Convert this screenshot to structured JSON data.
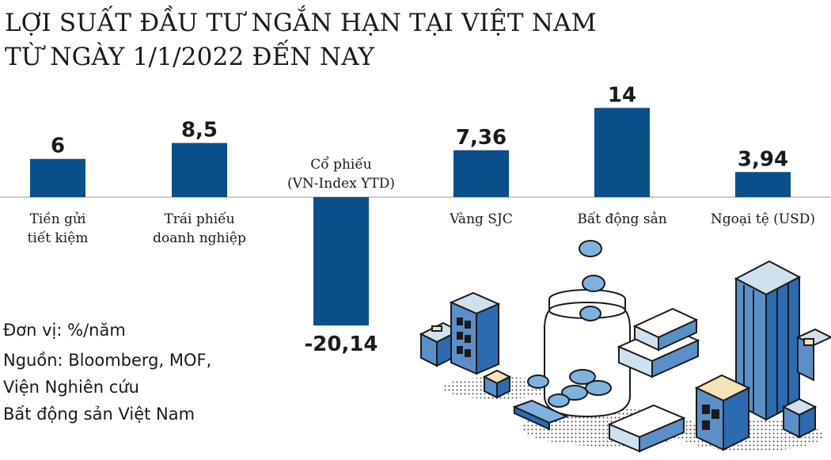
{
  "title": {
    "line1": "LỢI SUẤT ĐẦU TƯ NGẮN HẠN TẠI VIỆT NAM",
    "line2": "TỪ NGÀY 1/1/2022 ĐẾN NAY"
  },
  "notes": {
    "unit": "Đơn vị: %/năm",
    "source_line1": "Nguồn: Bloomberg, MOF,",
    "source_line2": "Viện Nghiên cứu",
    "source_line3": "Bất động sản Việt Nam"
  },
  "colors": {
    "bar": "#0b4f8a",
    "axis": "#9a9a9a",
    "text": "#1a1a1a"
  },
  "chart_data": {
    "type": "bar",
    "categories": [
      [
        "Tiền gửi",
        "tiết kiệm"
      ],
      [
        "Trái phiếu",
        "doanh nghiệp"
      ],
      [
        "Cổ phiếu",
        "(VN-Index YTD)"
      ],
      [
        "Vàng SJC"
      ],
      [
        "Bất động sản"
      ],
      [
        "Ngoại tệ (USD)"
      ]
    ],
    "values": [
      6,
      8.5,
      -20.14,
      7.36,
      14,
      3.94
    ],
    "value_labels": [
      "6",
      "8,5",
      "-20,14",
      "7,36",
      "14",
      "3,94"
    ],
    "title": "LỢI SUẤT ĐẦU TƯ NGẮN HẠN TẠI VIỆT NAM TỪ NGÀY 1/1/2022 ĐẾN NAY",
    "ylabel": "%/năm",
    "ylim": [
      -22,
      14
    ],
    "grid": false,
    "legend": "none"
  },
  "illustration": {
    "icons": [
      "buildings-icon",
      "coin-jar-icon",
      "gold-bars-icon",
      "coins-icon",
      "banknote-icon",
      "skyscraper-icon"
    ]
  }
}
